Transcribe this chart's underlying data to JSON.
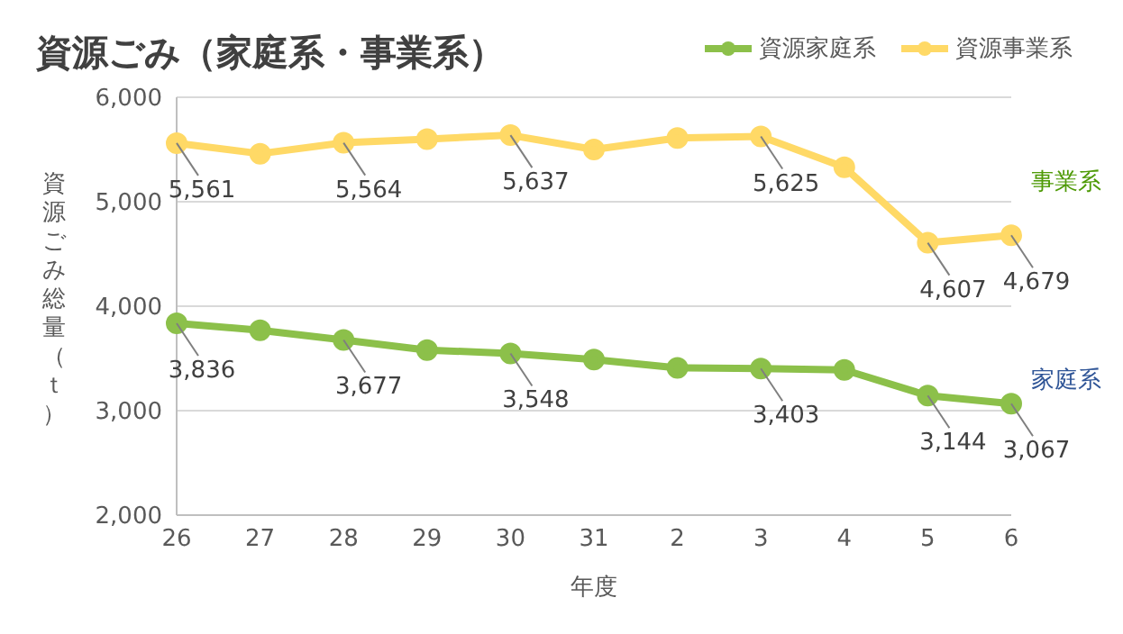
{
  "chart_data": {
    "type": "line",
    "title": "資源ごみ（家庭系・事業系）",
    "xlabel": "年度",
    "ylabel": "資源ごみ総量（ｔ）",
    "categories": [
      "26",
      "27",
      "28",
      "29",
      "30",
      "31",
      "2",
      "3",
      "4",
      "5",
      "6"
    ],
    "series": [
      {
        "name": "資源家庭系",
        "color": "#8cc04a",
        "values": [
          3836,
          3770,
          3677,
          3580,
          3548,
          3490,
          3410,
          3403,
          3390,
          3144,
          3067
        ],
        "value_labels": [
          "3,836",
          null,
          "3,677",
          null,
          "3,548",
          null,
          null,
          "3,403",
          null,
          "3,144",
          "3,067"
        ]
      },
      {
        "name": "資源事業系",
        "color": "#ffd966",
        "values": [
          5561,
          5460,
          5564,
          5600,
          5637,
          5500,
          5610,
          5625,
          5330,
          4607,
          4679
        ],
        "value_labels": [
          "5,561",
          null,
          "5,564",
          null,
          "5,637",
          null,
          null,
          "5,625",
          null,
          "4,607",
          "4,679"
        ]
      }
    ],
    "annotations": [
      "事業系",
      "家庭系"
    ],
    "ylim": [
      2000,
      6000
    ],
    "yticks": [
      {
        "value": 2000,
        "label": "2,000"
      },
      {
        "value": 3000,
        "label": "3,000"
      },
      {
        "value": 4000,
        "label": "4,000"
      },
      {
        "value": 5000,
        "label": "5,000"
      },
      {
        "value": 6000,
        "label": "6,000"
      }
    ],
    "grid": "y",
    "legend": "top right",
    "marker": "circle",
    "line_style": "solid"
  }
}
